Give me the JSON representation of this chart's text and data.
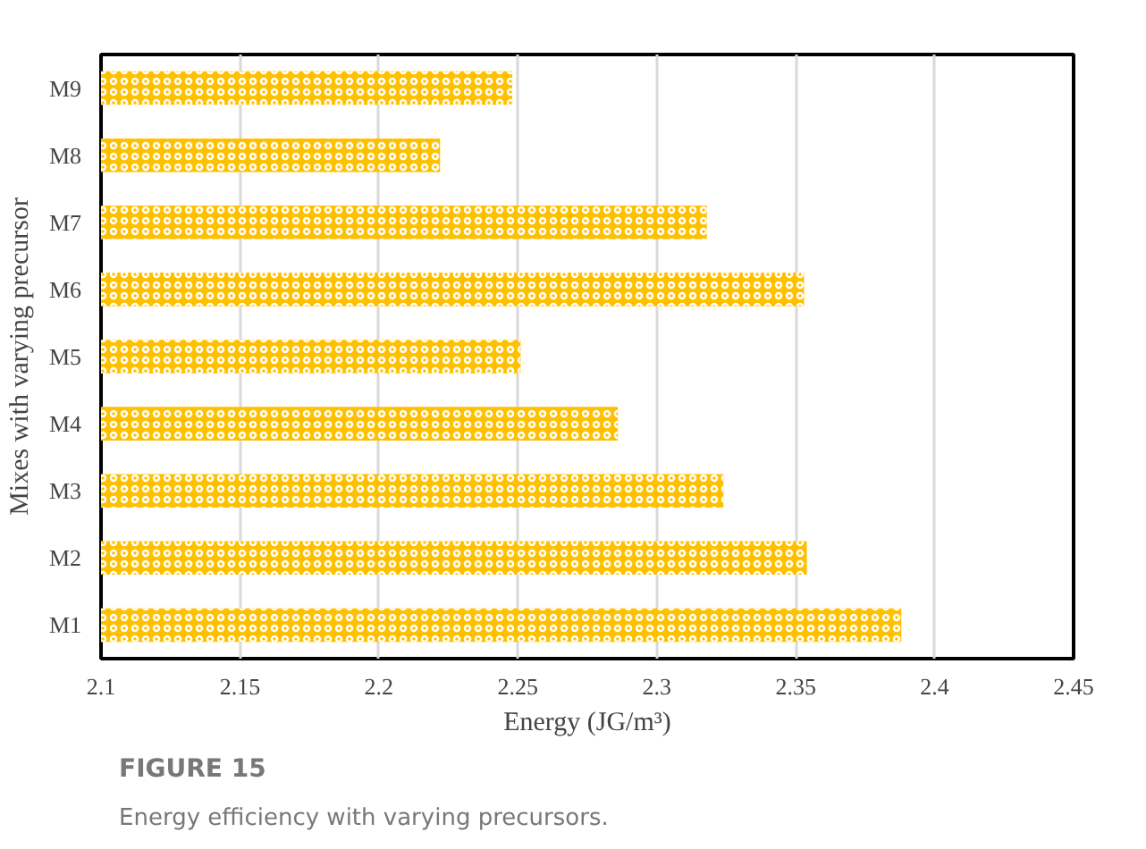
{
  "chart_data": {
    "type": "bar",
    "orientation": "horizontal",
    "xlabel": "Energy (JG/m³)",
    "ylabel": "Mixes with varying precursor",
    "categories": [
      "M9",
      "M8",
      "M7",
      "M6",
      "M5",
      "M4",
      "M3",
      "M2",
      "M1"
    ],
    "values": [
      2.248,
      2.222,
      2.318,
      2.353,
      2.251,
      2.286,
      2.324,
      2.354,
      2.388
    ],
    "color": "#ffc000",
    "xlim": [
      2.1,
      2.45
    ],
    "xticks": [
      2.1,
      2.15,
      2.2,
      2.25,
      2.3,
      2.35,
      2.4,
      2.45
    ],
    "grid": "x",
    "annotations": [
      "FIGURE 15",
      "Energy efficiency with varying precursors."
    ]
  }
}
